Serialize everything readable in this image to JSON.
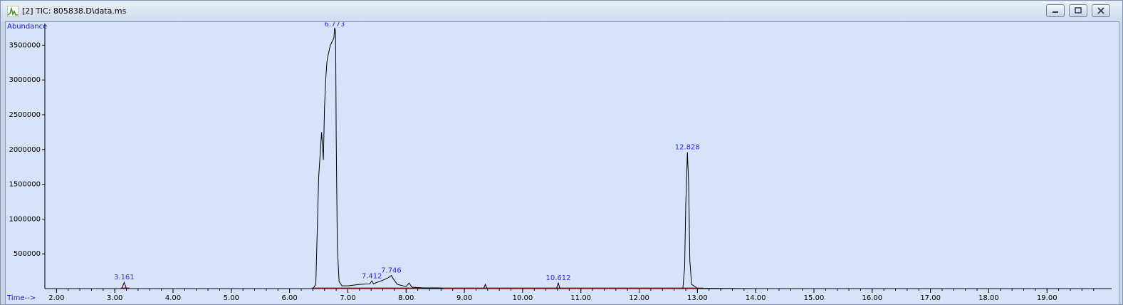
{
  "window": {
    "title": "[2] TIC: 805838.D\\data.ms",
    "icon": "chromatogram-icon",
    "buttons": [
      "minimize-icon",
      "maximize-icon",
      "close-icon"
    ]
  },
  "chart_data": {
    "type": "line",
    "ylabel": "Abundance",
    "xlabel": "Time-->",
    "xlim": [
      1.8,
      19.95
    ],
    "ylim": [
      0,
      3750000
    ],
    "x_ticks": [
      "2.00",
      "3.00",
      "4.00",
      "5.00",
      "6.00",
      "7.00",
      "8.00",
      "9.00",
      "10.00",
      "11.00",
      "12.00",
      "13.00",
      "14.00",
      "15.00",
      "16.00",
      "17.00",
      "18.00",
      "19.00"
    ],
    "y_ticks": [
      "500000",
      "1000000",
      "1500000",
      "2000000",
      "2500000",
      "3000000",
      "3500000"
    ],
    "grid": false,
    "colors": {
      "trace": "#000000",
      "baseline": "#e03030",
      "labels": "#2b2bff",
      "background": "#d6e3fb"
    },
    "peak_labels": [
      {
        "label": "3.161",
        "x": 3.161,
        "y": 90000
      },
      {
        "label": "6.773",
        "x": 6.773,
        "y": 3730000
      },
      {
        "label": "7.412",
        "x": 7.412,
        "y": 110000
      },
      {
        "label": "7.746",
        "x": 7.746,
        "y": 190000
      },
      {
        "label": "10.612",
        "x": 10.612,
        "y": 80000
      },
      {
        "label": "12.828",
        "x": 12.828,
        "y": 1960000
      }
    ],
    "series": [
      {
        "x": [
          1.8,
          3.12,
          3.161,
          3.2,
          6.4,
          6.45,
          6.5,
          6.55,
          6.58,
          6.6,
          6.62,
          6.64,
          6.66,
          6.7,
          6.73,
          6.76,
          6.773,
          6.79,
          6.8,
          6.82,
          6.85,
          6.9,
          7.0,
          7.2,
          7.38,
          7.412,
          7.44,
          7.5,
          7.6,
          7.7,
          7.746,
          7.78,
          7.85,
          8.0,
          8.05,
          8.1,
          8.3,
          8.6,
          8.65,
          9.0,
          9.33,
          9.36,
          9.39,
          10.0,
          10.58,
          10.612,
          10.64,
          12.75,
          12.78,
          12.8,
          12.828,
          12.85,
          12.87,
          12.9,
          13.0,
          14.0,
          19.95
        ],
        "y": [
          0,
          0,
          90000,
          0,
          0,
          60000,
          1600000,
          2250000,
          1850000,
          2600000,
          3000000,
          3250000,
          3350000,
          3500000,
          3550000,
          3600000,
          3750000,
          3700000,
          2200000,
          600000,
          100000,
          40000,
          40000,
          60000,
          70000,
          110000,
          70000,
          90000,
          120000,
          160000,
          190000,
          140000,
          60000,
          30000,
          80000,
          20000,
          10000,
          10000,
          0,
          0,
          0,
          60000,
          0,
          0,
          0,
          80000,
          0,
          0,
          300000,
          1200000,
          1960000,
          1500000,
          400000,
          60000,
          5000,
          0,
          0
        ]
      }
    ]
  }
}
